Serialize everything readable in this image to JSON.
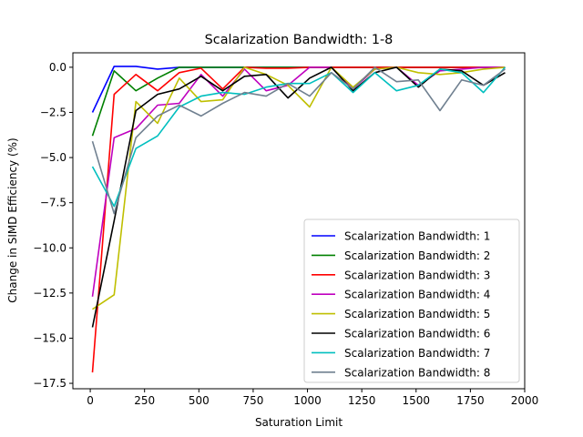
{
  "chart_data": {
    "type": "line",
    "title": "Scalarization Bandwidth: 1-8",
    "xlabel": "Saturation Limit",
    "ylabel": "Change in SIMD Efficiency (%)",
    "xlim": [
      -80,
      2000
    ],
    "ylim": [
      -17.8,
      0.8
    ],
    "xticks": [
      0,
      250,
      500,
      750,
      1000,
      1250,
      1500,
      1750,
      2000
    ],
    "yticks": [
      0.0,
      -2.5,
      -5.0,
      -7.5,
      -10.0,
      -12.5,
      -15.0,
      -17.5
    ],
    "xtick_labels": [
      "0",
      "250",
      "500",
      "750",
      "1000",
      "1250",
      "1500",
      "1750",
      "2000"
    ],
    "ytick_labels": [
      "0.0",
      "−2.5",
      "−5.0",
      "−7.5",
      "−10.0",
      "−12.5",
      "−15.0",
      "−17.5"
    ],
    "grid": false,
    "legend_position": "lower-right",
    "x": [
      10,
      110,
      210,
      310,
      410,
      510,
      610,
      710,
      810,
      910,
      1010,
      1110,
      1210,
      1310,
      1410,
      1510,
      1610,
      1710,
      1810,
      1910
    ],
    "series": [
      {
        "name": "Scalarization Bandwidth: 1",
        "color": "#0000ff",
        "values": [
          -2.5,
          0.05,
          0.05,
          -0.1,
          0.0,
          0.0,
          0.0,
          0.0,
          0.0,
          0.0,
          0.0,
          0.0,
          0.0,
          0.0,
          0.0,
          0.0,
          0.0,
          0.0,
          0.0,
          0.0
        ]
      },
      {
        "name": "Scalarization Bandwidth: 2",
        "color": "#008000",
        "values": [
          -3.8,
          -0.2,
          -1.3,
          -0.6,
          0.0,
          0.0,
          0.0,
          0.0,
          0.0,
          0.0,
          0.0,
          0.0,
          0.0,
          0.0,
          0.0,
          0.0,
          0.0,
          0.0,
          0.0,
          0.0
        ]
      },
      {
        "name": "Scalarization Bandwidth: 3",
        "color": "#ff0000",
        "values": [
          -16.9,
          -1.5,
          -0.4,
          -1.3,
          -0.3,
          -0.05,
          -1.2,
          0.0,
          -0.05,
          -0.05,
          0.0,
          0.0,
          0.0,
          0.0,
          0.0,
          0.0,
          0.0,
          0.0,
          0.0,
          0.0
        ]
      },
      {
        "name": "Scalarization Bandwidth: 4",
        "color": "#bf00bf",
        "values": [
          -12.7,
          -3.9,
          -3.4,
          -2.1,
          -2.0,
          -0.4,
          -1.6,
          -0.1,
          -1.3,
          -1.0,
          0.0,
          0.0,
          -1.2,
          -0.1,
          0.0,
          -1.0,
          -0.2,
          -0.1,
          0.0,
          0.0
        ]
      },
      {
        "name": "Scalarization Bandwidth: 5",
        "color": "#bfbf00",
        "values": [
          -13.4,
          -12.6,
          -1.9,
          -3.1,
          -0.6,
          -1.9,
          -1.8,
          0.0,
          -0.4,
          -1.0,
          -2.2,
          0.0,
          -1.1,
          -0.1,
          0.0,
          -0.3,
          -0.4,
          -0.3,
          -0.1,
          0.0
        ]
      },
      {
        "name": "Scalarization Bandwidth: 6",
        "color": "#000000",
        "values": [
          -14.4,
          -8.5,
          -2.4,
          -1.5,
          -1.2,
          -0.5,
          -1.3,
          -0.5,
          -0.4,
          -1.7,
          -0.6,
          0.0,
          -1.3,
          -0.3,
          0.0,
          -1.1,
          -0.1,
          -0.2,
          -1.0,
          -0.3
        ]
      },
      {
        "name": "Scalarization Bandwidth: 7",
        "color": "#00bfbf",
        "values": [
          -5.5,
          -7.7,
          -4.5,
          -3.8,
          -2.2,
          -1.6,
          -1.4,
          -1.5,
          -1.1,
          -0.9,
          -0.9,
          -0.3,
          -1.4,
          -0.3,
          -1.3,
          -1.0,
          -0.1,
          -0.3,
          -1.4,
          0.0
        ]
      },
      {
        "name": "Scalarization Bandwidth: 8",
        "color": "#708090",
        "values": [
          -4.1,
          -8.1,
          -3.9,
          -2.7,
          -2.1,
          -2.7,
          -2.0,
          -1.4,
          -1.6,
          -0.9,
          -1.6,
          -0.3,
          -1.2,
          0.0,
          -0.8,
          -0.7,
          -2.4,
          -0.7,
          -1.0,
          -0.1
        ]
      }
    ]
  }
}
